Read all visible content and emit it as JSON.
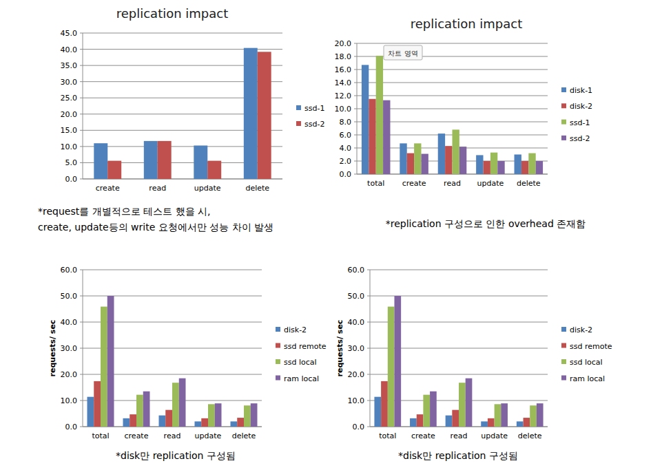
{
  "chart_data": [
    {
      "type": "bar",
      "title": "replication impact",
      "categories": [
        "create",
        "read",
        "update",
        "delete"
      ],
      "series": [
        {
          "name": "ssd-1",
          "color": "#4f81bd",
          "values": [
            11.0,
            11.7,
            10.3,
            40.4
          ]
        },
        {
          "name": "ssd-2",
          "color": "#c0504d",
          "values": [
            5.6,
            11.7,
            5.6,
            39.2
          ]
        }
      ],
      "ylim": [
        0,
        45
      ],
      "yticks": [
        {
          "value": 0,
          "label": "0.0"
        },
        {
          "value": 5,
          "label": "5.0"
        },
        {
          "value": 10,
          "label": "10.0"
        },
        {
          "value": 15,
          "label": "15.0"
        },
        {
          "value": 20,
          "label": "20.0"
        },
        {
          "value": 25,
          "label": "25.0"
        },
        {
          "value": 30,
          "label": "30.0"
        },
        {
          "value": 35,
          "label": "35.0"
        },
        {
          "value": 40,
          "label": "40.0"
        },
        {
          "value": 45,
          "label": "45.0"
        }
      ],
      "grid": true,
      "legend": "right",
      "annotations": [
        "*request를 개별적으로 테스트 했을 시,",
        "create, update등의 write 요청에서만 성능 차이 발생"
      ]
    },
    {
      "type": "bar",
      "title": "replication impact",
      "categories": [
        "total",
        "create",
        "read",
        "update",
        "delete"
      ],
      "series": [
        {
          "name": "disk-1",
          "color": "#4f81bd",
          "values": [
            16.7,
            4.7,
            6.2,
            2.9,
            3.0
          ]
        },
        {
          "name": "disk-2",
          "color": "#c0504d",
          "values": [
            11.5,
            3.2,
            4.3,
            2.0,
            2.0
          ]
        },
        {
          "name": "ssd-1",
          "color": "#9bbb59",
          "values": [
            18.1,
            4.7,
            6.8,
            3.3,
            3.2
          ]
        },
        {
          "name": "ssd-2",
          "color": "#8064a2",
          "values": [
            11.3,
            3.1,
            4.2,
            2.0,
            2.0
          ]
        }
      ],
      "ylim": [
        0,
        20
      ],
      "yticks": [
        {
          "value": 0,
          "label": "0.0"
        },
        {
          "value": 2,
          "label": "2.0"
        },
        {
          "value": 4,
          "label": "4.0"
        },
        {
          "value": 6,
          "label": "6.0"
        },
        {
          "value": 8,
          "label": "8.0"
        },
        {
          "value": 10,
          "label": "10.0"
        },
        {
          "value": 12,
          "label": "12.0"
        },
        {
          "value": 14,
          "label": "14.0"
        },
        {
          "value": 16,
          "label": "16.0"
        },
        {
          "value": 18,
          "label": "18.0"
        },
        {
          "value": 20,
          "label": "20.0"
        }
      ],
      "grid": true,
      "legend": "right",
      "annotations": [
        "차트 영역",
        "*replication 구성으로 인한 overhead 존재함"
      ]
    },
    {
      "type": "bar",
      "y_label": "requests/ sec",
      "categories": [
        "total",
        "create",
        "read",
        "update",
        "delete"
      ],
      "series": [
        {
          "name": "disk-2",
          "color": "#4f81bd",
          "values": [
            11.4,
            3.2,
            4.3,
            2.0,
            2.0
          ]
        },
        {
          "name": "ssd remote",
          "color": "#c0504d",
          "values": [
            17.4,
            4.7,
            6.4,
            3.2,
            3.4
          ]
        },
        {
          "name": "ssd local",
          "color": "#9bbb59",
          "values": [
            45.9,
            12.2,
            16.8,
            8.6,
            8.1
          ]
        },
        {
          "name": "ram local",
          "color": "#8064a2",
          "values": [
            50.0,
            13.5,
            18.5,
            8.9,
            8.9
          ]
        }
      ],
      "ylim": [
        0,
        60
      ],
      "yticks": [
        {
          "value": 0,
          "label": "0.0"
        },
        {
          "value": 10,
          "label": "10.0"
        },
        {
          "value": 20,
          "label": "20.0"
        },
        {
          "value": 30,
          "label": "30.0"
        },
        {
          "value": 40,
          "label": "40.0"
        },
        {
          "value": 50,
          "label": "50.0"
        },
        {
          "value": 60,
          "label": "60.0"
        }
      ],
      "grid": true,
      "legend": "right",
      "annotations": [
        "*disk만 replication 구성됨"
      ]
    },
    {
      "type": "bar",
      "y_label": "requests/ sec",
      "categories": [
        "total",
        "create",
        "read",
        "update",
        "delete"
      ],
      "series": [
        {
          "name": "disk-2",
          "color": "#4f81bd",
          "values": [
            11.4,
            3.2,
            4.3,
            2.0,
            2.0
          ]
        },
        {
          "name": "ssd remote",
          "color": "#c0504d",
          "values": [
            17.4,
            4.7,
            6.4,
            3.2,
            3.4
          ]
        },
        {
          "name": "ssd local",
          "color": "#9bbb59",
          "values": [
            45.9,
            12.2,
            16.8,
            8.6,
            8.1
          ]
        },
        {
          "name": "ram local",
          "color": "#8064a2",
          "values": [
            50.0,
            13.5,
            18.5,
            8.9,
            8.9
          ]
        }
      ],
      "ylim": [
        0,
        60
      ],
      "yticks": [
        {
          "value": 0,
          "label": "0.0"
        },
        {
          "value": 10,
          "label": "10.0"
        },
        {
          "value": 20,
          "label": "20.0"
        },
        {
          "value": 30,
          "label": "30.0"
        },
        {
          "value": 40,
          "label": "40.0"
        },
        {
          "value": 50,
          "label": "50.0"
        },
        {
          "value": 60,
          "label": "60.0"
        }
      ],
      "grid": true,
      "legend": "right",
      "annotations": [
        "*disk만 replication 구성됨"
      ]
    }
  ]
}
